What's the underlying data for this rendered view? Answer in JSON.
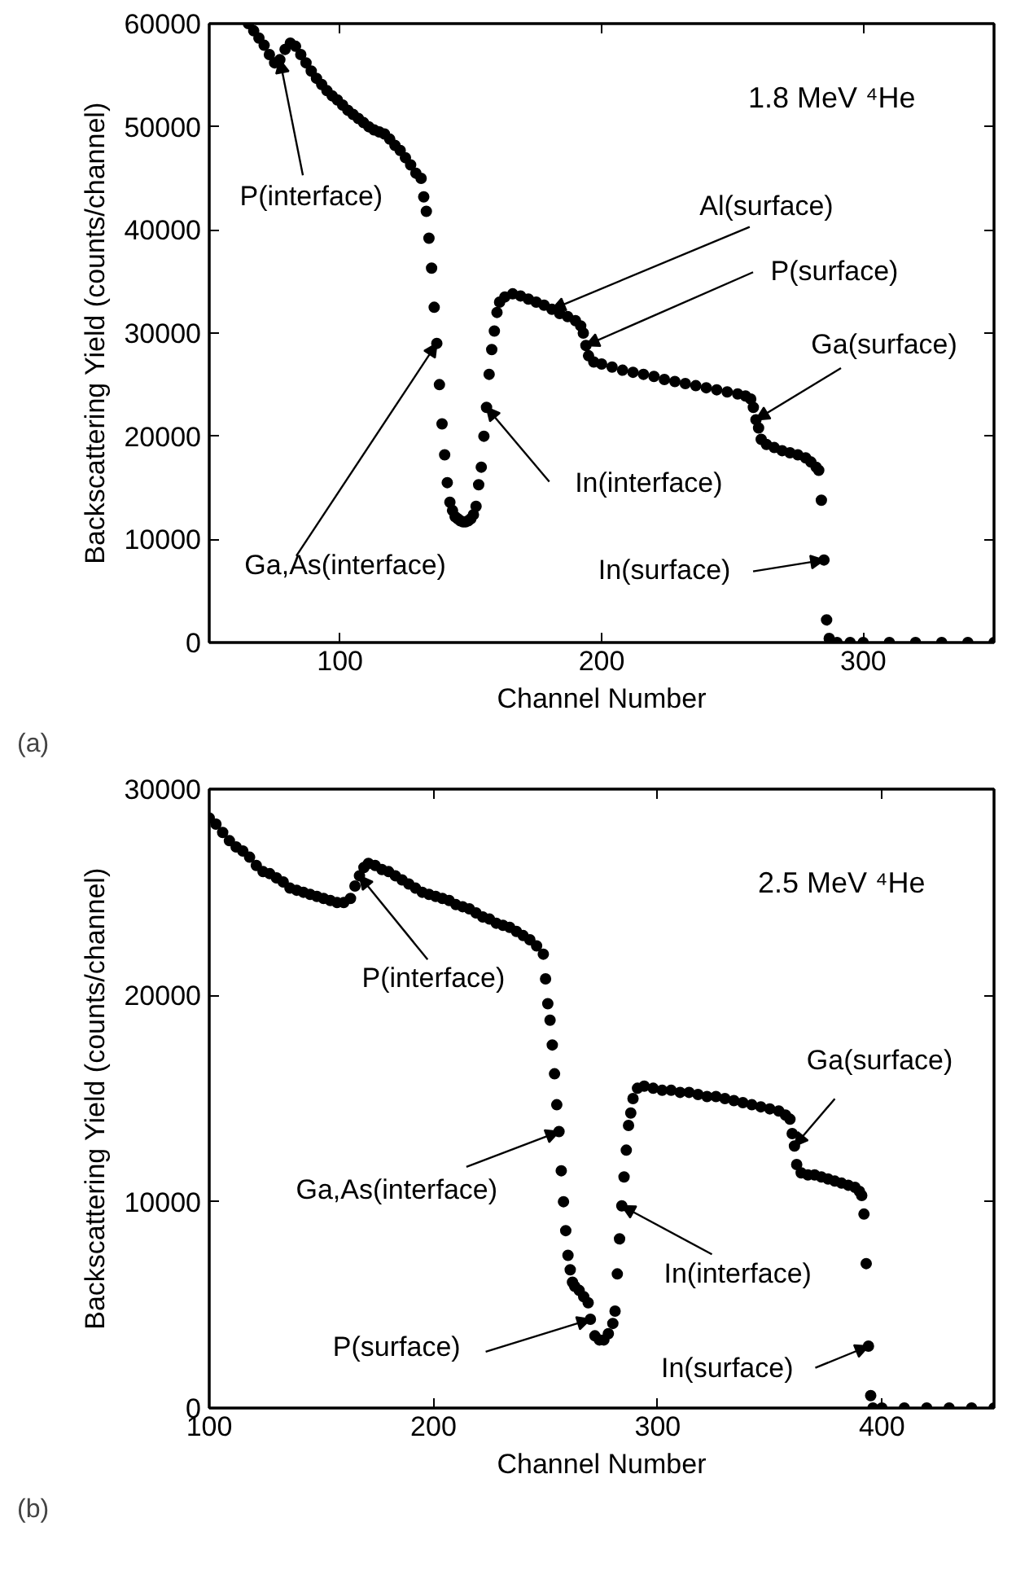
{
  "chart_data": [
    {
      "type": "scatter",
      "xlabel": "Channel Number",
      "ylabel": "Backscattering Yield (counts/channel)",
      "marker": "circle",
      "xlim": [
        50,
        350
      ],
      "xticks": [
        100,
        200,
        300
      ],
      "ylim": [
        0,
        60000
      ],
      "yticks": [
        0,
        10000,
        20000,
        30000,
        40000,
        50000,
        60000
      ],
      "annotations": [
        "1.8 MeV ⁴He",
        "(a)",
        {
          "text": "P(interface)",
          "x": 77,
          "y": 56500
        },
        {
          "text": "Ga,As(interface)",
          "x": 137,
          "y": 29000
        },
        {
          "text": "Al(surface)",
          "x": 181,
          "y": 32300
        },
        {
          "text": "P(surface)",
          "x": 194,
          "y": 28800
        },
        {
          "text": "Ga(surface)",
          "x": 259,
          "y": 21600
        },
        {
          "text": "In(interface)",
          "x": 156,
          "y": 22800
        },
        {
          "text": "In(surface)",
          "x": 285,
          "y": 8000
        }
      ],
      "series": [
        {
          "color": "#000000",
          "x": [
            65,
            67,
            69,
            71,
            73,
            75,
            77,
            79,
            81,
            83,
            85,
            87,
            89,
            91,
            93,
            95,
            97,
            99,
            101,
            103,
            105,
            107,
            109,
            111,
            113,
            115,
            117,
            119,
            121,
            123,
            125,
            127,
            129,
            131,
            132,
            133,
            134,
            135,
            136,
            137,
            138,
            139,
            140,
            141,
            142,
            143,
            144,
            145,
            146,
            147,
            148,
            149,
            150,
            151,
            152,
            153,
            154,
            155,
            156,
            157,
            158,
            159,
            160,
            161,
            163,
            166,
            169,
            172,
            175,
            178,
            181,
            184,
            187,
            190,
            192,
            193,
            194,
            195,
            197,
            200,
            204,
            208,
            212,
            216,
            220,
            224,
            228,
            232,
            236,
            240,
            244,
            248,
            252,
            255,
            257,
            258,
            259,
            260,
            261,
            263,
            266,
            269,
            272,
            275,
            278,
            280,
            282,
            283,
            284,
            285,
            286,
            287,
            290,
            295,
            300,
            310,
            320,
            330,
            340,
            350
          ],
          "values": [
            60000,
            59300,
            58600,
            57900,
            57000,
            56200,
            56500,
            57500,
            58100,
            57800,
            57000,
            56200,
            55400,
            54700,
            54100,
            53500,
            53000,
            52600,
            52100,
            51600,
            51200,
            50800,
            50400,
            50000,
            49700,
            49500,
            49300,
            48800,
            48200,
            47700,
            47000,
            46300,
            45500,
            45000,
            43200,
            41800,
            39200,
            36300,
            32500,
            29000,
            25000,
            21200,
            18200,
            15500,
            13600,
            12800,
            12200,
            12000,
            11800,
            11700,
            11700,
            11800,
            12000,
            12400,
            13200,
            15300,
            17000,
            20000,
            22800,
            26000,
            28400,
            30200,
            32000,
            33000,
            33500,
            33800,
            33600,
            33300,
            33000,
            32700,
            32300,
            31900,
            31600,
            31200,
            30700,
            30000,
            28800,
            27800,
            27200,
            27000,
            26700,
            26400,
            26200,
            26000,
            25800,
            25500,
            25300,
            25100,
            24900,
            24700,
            24500,
            24300,
            24100,
            23900,
            23600,
            22800,
            21600,
            20800,
            19700,
            19200,
            18900,
            18600,
            18400,
            18200,
            17900,
            17500,
            17000,
            16700,
            13800,
            8000,
            2200,
            400,
            0,
            0,
            0,
            0,
            0,
            0,
            0,
            0
          ]
        }
      ]
    },
    {
      "type": "scatter",
      "xlabel": "Channel Number",
      "ylabel": "Backscattering Yield (counts/channel)",
      "marker": "circle",
      "xlim": [
        100,
        450
      ],
      "xticks": [
        100,
        200,
        300,
        400
      ],
      "ylim": [
        0,
        30000
      ],
      "yticks": [
        0,
        10000,
        20000,
        30000
      ],
      "annotations": [
        "2.5 MeV ⁴He",
        "(b)",
        {
          "text": "P(interface)",
          "x": 167,
          "y": 25800
        },
        {
          "text": "Ga,As(interface)",
          "x": 256,
          "y": 13400
        },
        {
          "text": "P(surface)",
          "x": 270,
          "y": 4300
        },
        {
          "text": "In(interface)",
          "x": 284,
          "y": 9800
        },
        {
          "text": "In(surface)",
          "x": 394,
          "y": 3000
        },
        {
          "text": "Ga(surface)",
          "x": 361,
          "y": 12700
        }
      ],
      "series": [
        {
          "color": "#000000",
          "x": [
            100,
            103,
            106,
            109,
            112,
            115,
            118,
            121,
            124,
            127,
            130,
            133,
            136,
            139,
            142,
            145,
            148,
            151,
            154,
            157,
            160,
            163,
            165,
            167,
            169,
            171,
            174,
            177,
            180,
            183,
            186,
            189,
            192,
            195,
            198,
            201,
            204,
            207,
            210,
            213,
            216,
            219,
            222,
            225,
            228,
            231,
            234,
            237,
            240,
            243,
            246,
            249,
            250,
            251,
            252,
            253,
            254,
            255,
            256,
            257,
            258,
            259,
            260,
            261,
            262,
            263,
            265,
            267,
            269,
            270,
            272,
            274,
            276,
            278,
            280,
            281,
            282,
            283,
            284,
            285,
            286,
            287,
            288,
            289,
            291,
            294,
            298,
            302,
            306,
            310,
            314,
            318,
            322,
            326,
            330,
            334,
            338,
            342,
            346,
            350,
            354,
            357,
            359,
            360,
            361,
            362,
            364,
            367,
            370,
            373,
            376,
            379,
            382,
            385,
            388,
            390,
            391,
            392,
            393,
            394,
            395,
            396,
            400,
            410,
            420,
            430,
            440,
            450
          ],
          "values": [
            28600,
            28300,
            27900,
            27500,
            27200,
            27000,
            26700,
            26300,
            26000,
            25900,
            25700,
            25500,
            25200,
            25100,
            25000,
            24900,
            24800,
            24700,
            24600,
            24500,
            24500,
            24700,
            25300,
            25800,
            26200,
            26400,
            26300,
            26100,
            26000,
            25800,
            25600,
            25400,
            25200,
            25000,
            24900,
            24800,
            24700,
            24600,
            24400,
            24300,
            24200,
            24000,
            23800,
            23700,
            23500,
            23400,
            23300,
            23100,
            22900,
            22700,
            22400,
            22000,
            20800,
            19600,
            18800,
            17600,
            16200,
            14700,
            13400,
            11500,
            10000,
            8600,
            7400,
            6700,
            6100,
            5900,
            5700,
            5400,
            5100,
            4300,
            3500,
            3300,
            3300,
            3600,
            4100,
            4700,
            6500,
            8200,
            9800,
            11200,
            12500,
            13700,
            14300,
            15000,
            15500,
            15600,
            15500,
            15400,
            15400,
            15300,
            15300,
            15200,
            15100,
            15100,
            15000,
            14900,
            14800,
            14700,
            14600,
            14500,
            14400,
            14200,
            14000,
            13300,
            12700,
            11800,
            11400,
            11300,
            11300,
            11200,
            11100,
            11000,
            10900,
            10800,
            10700,
            10500,
            10300,
            9400,
            7000,
            3000,
            600,
            0,
            0,
            0,
            0,
            0,
            0,
            0
          ]
        }
      ]
    }
  ]
}
